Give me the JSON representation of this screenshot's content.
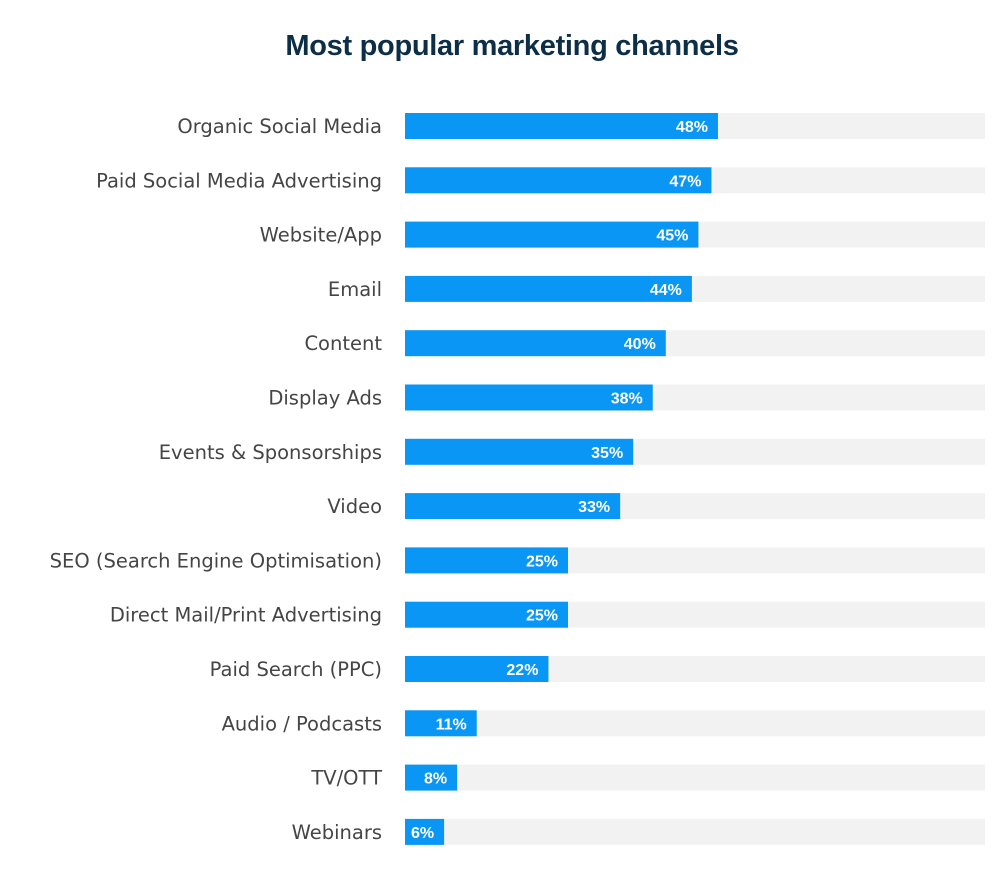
{
  "chart_data": {
    "type": "bar",
    "orientation": "horizontal",
    "title": "Most popular marketing channels",
    "categories": [
      "Organic Social Media",
      "Paid Social Media Advertising",
      "Website/App",
      "Email",
      "Content",
      "Display Ads",
      "Events & Sponsorships",
      "Video",
      "SEO (Search Engine Optimisation)",
      "Direct Mail/Print Advertising",
      "Paid Search (PPC)",
      "Audio / Podcasts",
      "TV/OTT",
      "Webinars"
    ],
    "values": [
      48,
      47,
      45,
      44,
      40,
      38,
      35,
      33,
      25,
      25,
      22,
      11,
      8,
      6
    ],
    "value_labels": [
      "48%",
      "47%",
      "45%",
      "44%",
      "40%",
      "38%",
      "35%",
      "33%",
      "25%",
      "25%",
      "22%",
      "11%",
      "8%",
      "6%"
    ],
    "xlabel": "",
    "ylabel": "",
    "grid": false,
    "colors": {
      "bar": "#0a96f5",
      "track": "#f2f2f2",
      "title": "#0d2e47",
      "label": "#454545"
    }
  }
}
